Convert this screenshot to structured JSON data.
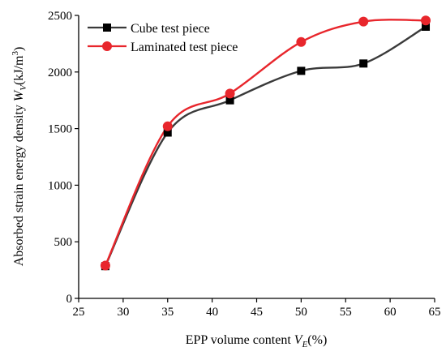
{
  "chart_data": {
    "type": "line",
    "xlabel": {
      "main": "EPP volume content ",
      "var": "V",
      "sub": "E",
      "unit": "(%)"
    },
    "ylabel": {
      "main": "Absorbed strain energy density ",
      "var": "W",
      "sub": "V",
      "unit": "(kJ/m",
      "sup": "3",
      "close": ")"
    },
    "xlim": [
      25,
      65
    ],
    "ylim": [
      0,
      2500
    ],
    "xticks": [
      25,
      30,
      35,
      40,
      45,
      50,
      55,
      60,
      65
    ],
    "yticks": [
      0,
      500,
      1000,
      1500,
      2000,
      2500
    ],
    "grid": false,
    "legend_position": "top-left",
    "series": [
      {
        "name": "Cube test piece",
        "marker": "square",
        "color": "#3a3a3a",
        "marker_color": "#000000",
        "x": [
          28,
          35,
          42,
          50,
          57,
          64
        ],
        "y": [
          285,
          1465,
          1750,
          2010,
          2075,
          2400
        ]
      },
      {
        "name": "Laminated test piece",
        "marker": "circle",
        "color": "#e8262c",
        "marker_color": "#e8262c",
        "x": [
          28,
          35,
          42,
          50,
          57,
          64
        ],
        "y": [
          290,
          1520,
          1810,
          2265,
          2445,
          2455
        ]
      }
    ]
  }
}
